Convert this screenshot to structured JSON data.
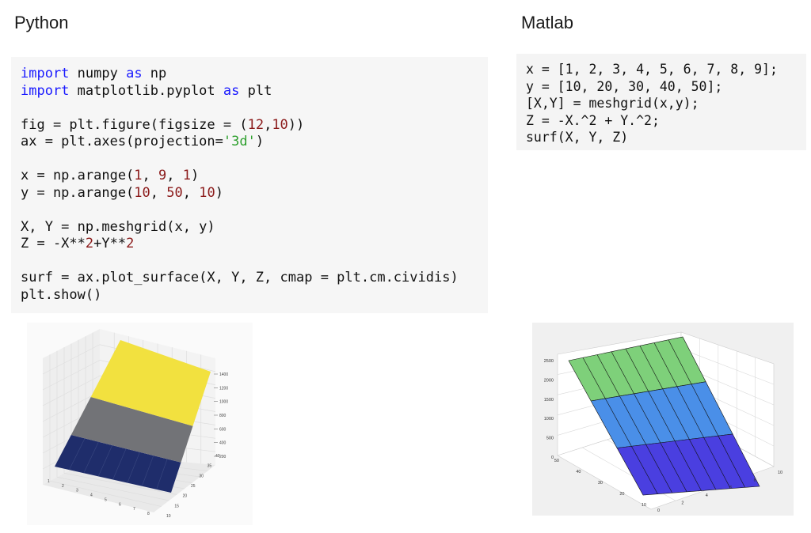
{
  "python": {
    "heading": "Python",
    "code_lines": [
      [
        [
          "kw",
          "import"
        ],
        [
          "p",
          " numpy "
        ],
        [
          "kw",
          "as"
        ],
        [
          "p",
          " np"
        ]
      ],
      [
        [
          "kw",
          "import"
        ],
        [
          "p",
          " matplotlib.pyplot "
        ],
        [
          "kw",
          "as"
        ],
        [
          "p",
          " plt"
        ]
      ],
      [],
      [
        [
          "p",
          "fig = plt.figure(figsize = ("
        ],
        [
          "num",
          "12"
        ],
        [
          "p",
          ","
        ],
        [
          "num",
          "10"
        ],
        [
          "p",
          "))"
        ]
      ],
      [
        [
          "p",
          "ax = plt.axes(projection="
        ],
        [
          "str",
          "'3d'"
        ],
        [
          "p",
          ")"
        ]
      ],
      [],
      [
        [
          "p",
          "x = np.arange("
        ],
        [
          "num",
          "1"
        ],
        [
          "p",
          ", "
        ],
        [
          "num",
          "9"
        ],
        [
          "p",
          ", "
        ],
        [
          "num",
          "1"
        ],
        [
          "p",
          ")"
        ]
      ],
      [
        [
          "p",
          "y = np.arange("
        ],
        [
          "num",
          "10"
        ],
        [
          "p",
          ", "
        ],
        [
          "num",
          "50"
        ],
        [
          "p",
          ", "
        ],
        [
          "num",
          "10"
        ],
        [
          "p",
          ")"
        ]
      ],
      [],
      [
        [
          "p",
          "X, Y = np.meshgrid(x, y)"
        ]
      ],
      [
        [
          "p",
          "Z = -X**"
        ],
        [
          "num",
          "2"
        ],
        [
          "p",
          "+Y**"
        ],
        [
          "num",
          "2"
        ]
      ],
      [],
      [
        [
          "p",
          "surf = ax.plot_surface(X, Y, Z, cmap = plt.cm.cividis)"
        ]
      ],
      [
        [
          "p",
          "plt.show()"
        ]
      ]
    ]
  },
  "matlab": {
    "heading": "Matlab",
    "code_lines": [
      "x = [1, 2, 3, 4, 5, 6, 7, 8, 9];",
      "y = [10, 20, 30, 40, 50];",
      "[X,Y] = meshgrid(x,y);",
      "Z = -X.^2 + Y.^2;",
      "surf(X, Y, Z)"
    ]
  },
  "chart_data": [
    {
      "type": "surface",
      "source": "python",
      "x_ticks": [
        "1",
        "2",
        "3",
        "4",
        "5",
        "6",
        "7",
        "8"
      ],
      "y_ticks": [
        "10",
        "15",
        "20",
        "25",
        "30",
        "35",
        "40"
      ],
      "z_ticks": [
        "200",
        "400",
        "600",
        "800",
        "1000",
        "1200",
        "1400"
      ],
      "colormap": "cividis",
      "colors": {
        "low": "#1f2d6b",
        "mid": "#727377",
        "high": "#f2e13f"
      }
    },
    {
      "type": "surface",
      "source": "matlab",
      "x_ticks": [
        "0",
        "2",
        "4",
        "6",
        "8",
        "10"
      ],
      "y_ticks": [
        "10",
        "20",
        "30",
        "40",
        "50"
      ],
      "z_ticks": [
        "0",
        "500",
        "1000",
        "1500",
        "2000",
        "2500"
      ],
      "colormap": "parula",
      "colors": {
        "low": "#4a3fe0",
        "mid": "#4a8fe8",
        "high": "#7ed07a"
      }
    }
  ]
}
